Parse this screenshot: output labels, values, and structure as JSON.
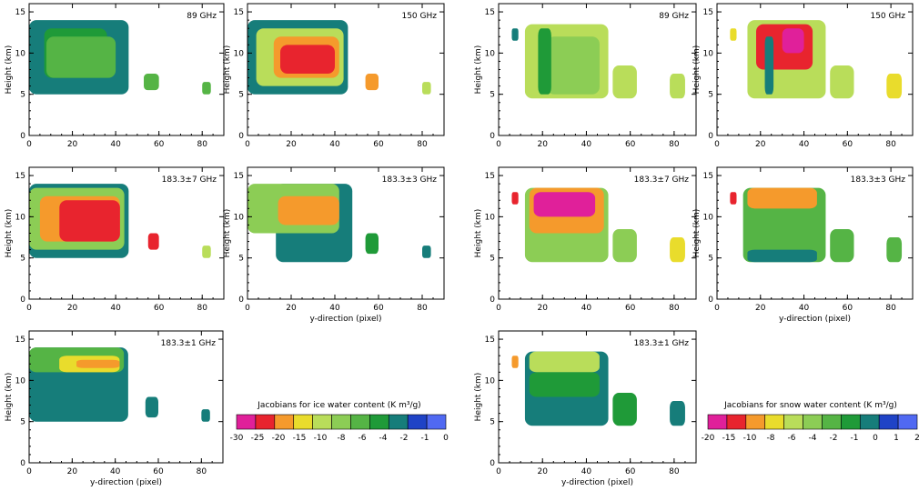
{
  "panel_axes": {
    "xlim": [
      0,
      90
    ],
    "ylim": [
      0,
      16
    ],
    "xticks": [
      0,
      20,
      40,
      60,
      80
    ],
    "yticks": [
      0,
      5,
      10,
      15
    ],
    "ylabel": "Height (km)",
    "xlabel": "y-direction (pixel)"
  },
  "colorbars": [
    {
      "title": "Jacobians for ice water content (K m³/g)",
      "labels": [
        "-30",
        "-25",
        "-20",
        "-15",
        "-10",
        "-8",
        "-6",
        "-4",
        "-2",
        "-1",
        "0"
      ],
      "colors": [
        "#e0209a",
        "#e8242e",
        "#f59a2c",
        "#e9dc2c",
        "#b9dd5a",
        "#8ccd55",
        "#55b445",
        "#1f9a38",
        "#167d7a",
        "#1f43c6",
        "#5069f2"
      ]
    },
    {
      "title": "Jacobians for snow water content (K m³/g)",
      "labels": [
        "-20",
        "-15",
        "-10",
        "-8",
        "-6",
        "-4",
        "-2",
        "-1",
        "0",
        "1",
        "2"
      ],
      "colors": [
        "#e0209a",
        "#e8242e",
        "#f59a2c",
        "#e9dc2c",
        "#b9dd5a",
        "#8ccd55",
        "#55b445",
        "#1f9a38",
        "#167d7a",
        "#1f43c6",
        "#5069f2"
      ]
    }
  ],
  "chart_data": [
    {
      "type": "heatmap",
      "field": "ice",
      "freq": "89 GHz",
      "xlabel": "",
      "ylabel": "Height (km)",
      "xlim": [
        0,
        90
      ],
      "ylim": [
        0,
        16
      ],
      "regions": [
        {
          "level": -1,
          "x": [
            0,
            46
          ],
          "y": [
            5,
            14
          ]
        },
        {
          "level": -2,
          "x": [
            7,
            36
          ],
          "y": [
            7,
            13
          ]
        },
        {
          "level": -4,
          "x": [
            8,
            40
          ],
          "y": [
            7,
            12
          ]
        },
        {
          "level": -4,
          "x": [
            53,
            60
          ],
          "y": [
            5.5,
            7.5
          ]
        },
        {
          "level": -4,
          "x": [
            80,
            84
          ],
          "y": [
            5,
            6.5
          ]
        }
      ]
    },
    {
      "type": "heatmap",
      "field": "ice",
      "freq": "150 GHz",
      "xlabel": "",
      "ylabel": "Height (km)",
      "xlim": [
        0,
        90
      ],
      "ylim": [
        0,
        16
      ],
      "regions": [
        {
          "level": -1,
          "x": [
            0,
            46
          ],
          "y": [
            5,
            14
          ]
        },
        {
          "level": -8,
          "x": [
            4,
            44
          ],
          "y": [
            6,
            13
          ]
        },
        {
          "level": -15,
          "x": [
            12,
            42
          ],
          "y": [
            7,
            12
          ]
        },
        {
          "level": -20,
          "x": [
            15,
            40
          ],
          "y": [
            7.5,
            11
          ]
        },
        {
          "level": -15,
          "x": [
            54,
            60
          ],
          "y": [
            5.5,
            7.5
          ]
        },
        {
          "level": -8,
          "x": [
            80,
            84
          ],
          "y": [
            5,
            6.5
          ]
        }
      ]
    },
    {
      "type": "heatmap",
      "field": "snow",
      "freq": "89 GHz",
      "xlabel": "",
      "ylabel": "Height (km)",
      "xlim": [
        0,
        90
      ],
      "ylim": [
        0,
        16
      ],
      "regions": [
        {
          "level": 1,
          "x": [
            6,
            9
          ],
          "y": [
            11.5,
            13
          ]
        },
        {
          "level": -4,
          "x": [
            12,
            50
          ],
          "y": [
            4.5,
            13.5
          ]
        },
        {
          "level": -2,
          "x": [
            22,
            46
          ],
          "y": [
            5,
            12
          ]
        },
        {
          "level": 0,
          "x": [
            18,
            24
          ],
          "y": [
            5,
            13
          ]
        },
        {
          "level": -4,
          "x": [
            52,
            63
          ],
          "y": [
            4.5,
            8.5
          ]
        },
        {
          "level": -4,
          "x": [
            78,
            85
          ],
          "y": [
            4.5,
            7.5
          ]
        }
      ]
    },
    {
      "type": "heatmap",
      "field": "snow",
      "freq": "150 GHz",
      "xlabel": "",
      "ylabel": "Height (km)",
      "xlim": [
        0,
        90
      ],
      "ylim": [
        0,
        16
      ],
      "regions": [
        {
          "level": -6,
          "x": [
            6,
            9
          ],
          "y": [
            11.5,
            13
          ]
        },
        {
          "level": -4,
          "x": [
            14,
            50
          ],
          "y": [
            4.5,
            14
          ]
        },
        {
          "level": -10,
          "x": [
            18,
            44
          ],
          "y": [
            8,
            13.5
          ]
        },
        {
          "level": -15,
          "x": [
            30,
            40
          ],
          "y": [
            10,
            13
          ]
        },
        {
          "level": 1,
          "x": [
            22,
            26
          ],
          "y": [
            5,
            12
          ]
        },
        {
          "level": -4,
          "x": [
            52,
            63
          ],
          "y": [
            4.5,
            8.5
          ]
        },
        {
          "level": -6,
          "x": [
            78,
            85
          ],
          "y": [
            4.5,
            7.5
          ]
        }
      ]
    },
    {
      "type": "heatmap",
      "field": "ice",
      "freq": "183.3±7 GHz",
      "xlabel": "",
      "ylabel": "Height (km)",
      "xlim": [
        0,
        90
      ],
      "ylim": [
        0,
        16
      ],
      "regions": [
        {
          "level": -1,
          "x": [
            0,
            46
          ],
          "y": [
            5,
            14
          ]
        },
        {
          "level": -6,
          "x": [
            0,
            44
          ],
          "y": [
            6,
            13.5
          ]
        },
        {
          "level": -15,
          "x": [
            5,
            42
          ],
          "y": [
            7,
            12.5
          ]
        },
        {
          "level": -20,
          "x": [
            14,
            42
          ],
          "y": [
            7,
            12
          ]
        },
        {
          "level": -20,
          "x": [
            55,
            60
          ],
          "y": [
            6,
            8
          ]
        },
        {
          "level": -8,
          "x": [
            80,
            84
          ],
          "y": [
            5,
            6.5
          ]
        }
      ]
    },
    {
      "type": "heatmap",
      "field": "ice",
      "freq": "183.3±3 GHz",
      "xlabel": "",
      "ylabel": "Height (km)",
      "xlim": [
        0,
        90
      ],
      "ylim": [
        0,
        16
      ],
      "regions": [
        {
          "level": -1,
          "x": [
            13,
            48
          ],
          "y": [
            4.5,
            14
          ]
        },
        {
          "level": -6,
          "x": [
            0,
            42
          ],
          "y": [
            8,
            14
          ]
        },
        {
          "level": -15,
          "x": [
            14,
            42
          ],
          "y": [
            9,
            12.5
          ]
        },
        {
          "level": -2,
          "x": [
            54,
            60
          ],
          "y": [
            5.5,
            8
          ]
        },
        {
          "level": -1,
          "x": [
            80,
            84
          ],
          "y": [
            5,
            6.5
          ]
        }
      ]
    },
    {
      "type": "heatmap",
      "field": "snow",
      "freq": "183.3±7 GHz",
      "xlabel": "",
      "ylabel": "Height (km)",
      "xlim": [
        0,
        90
      ],
      "ylim": [
        0,
        16
      ],
      "regions": [
        {
          "level": -10,
          "x": [
            6,
            9
          ],
          "y": [
            11.5,
            13
          ]
        },
        {
          "level": -2,
          "x": [
            12,
            50
          ],
          "y": [
            4.5,
            13.5
          ]
        },
        {
          "level": -8,
          "x": [
            14,
            48
          ],
          "y": [
            8,
            13.5
          ]
        },
        {
          "level": -15,
          "x": [
            16,
            44
          ],
          "y": [
            10,
            13
          ]
        },
        {
          "level": -2,
          "x": [
            52,
            63
          ],
          "y": [
            4.5,
            8.5
          ]
        },
        {
          "level": -6,
          "x": [
            78,
            85
          ],
          "y": [
            4.5,
            7.5
          ]
        }
      ]
    },
    {
      "type": "heatmap",
      "field": "snow",
      "freq": "183.3±3 GHz",
      "xlabel": "",
      "ylabel": "Height (km)",
      "xlim": [
        0,
        90
      ],
      "ylim": [
        0,
        16
      ],
      "regions": [
        {
          "level": -10,
          "x": [
            6,
            9
          ],
          "y": [
            11.5,
            13
          ]
        },
        {
          "level": -1,
          "x": [
            12,
            50
          ],
          "y": [
            4.5,
            13.5
          ]
        },
        {
          "level": -8,
          "x": [
            14,
            46
          ],
          "y": [
            11,
            13.5
          ]
        },
        {
          "level": 1,
          "x": [
            14,
            46
          ],
          "y": [
            4.5,
            6
          ]
        },
        {
          "level": -1,
          "x": [
            52,
            63
          ],
          "y": [
            4.5,
            8.5
          ]
        },
        {
          "level": -1,
          "x": [
            78,
            85
          ],
          "y": [
            4.5,
            7.5
          ]
        }
      ]
    },
    {
      "type": "heatmap",
      "field": "ice",
      "freq": "183.3±1 GHz",
      "xlabel": "y-direction (pixel)",
      "ylabel": "Height (km)",
      "xlim": [
        0,
        90
      ],
      "ylim": [
        0,
        16
      ],
      "regions": [
        {
          "level": -1,
          "x": [
            0,
            46
          ],
          "y": [
            5,
            14
          ]
        },
        {
          "level": -4,
          "x": [
            0,
            44
          ],
          "y": [
            11,
            14
          ]
        },
        {
          "level": -10,
          "x": [
            14,
            42
          ],
          "y": [
            11,
            13
          ]
        },
        {
          "level": -15,
          "x": [
            22,
            42
          ],
          "y": [
            11.5,
            12.5
          ]
        },
        {
          "level": -1,
          "x": [
            54,
            60
          ],
          "y": [
            5.5,
            8
          ]
        },
        {
          "level": -1,
          "x": [
            80,
            84
          ],
          "y": [
            5,
            6.5
          ]
        }
      ]
    },
    {
      "type": "heatmap",
      "field": "snow",
      "freq": "183.3±1 GHz",
      "xlabel": "y-direction (pixel)",
      "ylabel": "Height (km)",
      "xlim": [
        0,
        90
      ],
      "ylim": [
        0,
        16
      ],
      "regions": [
        {
          "level": -8,
          "x": [
            6,
            9
          ],
          "y": [
            11.5,
            13
          ]
        },
        {
          "level": 1,
          "x": [
            12,
            50
          ],
          "y": [
            4.5,
            13.5
          ]
        },
        {
          "level": -4,
          "x": [
            14,
            46
          ],
          "y": [
            11,
            13.5
          ]
        },
        {
          "level": 0,
          "x": [
            14,
            46
          ],
          "y": [
            8,
            11
          ]
        },
        {
          "level": 0,
          "x": [
            52,
            63
          ],
          "y": [
            4.5,
            8.5
          ]
        },
        {
          "level": 1,
          "x": [
            78,
            85
          ],
          "y": [
            4.5,
            7.5
          ]
        }
      ]
    }
  ]
}
